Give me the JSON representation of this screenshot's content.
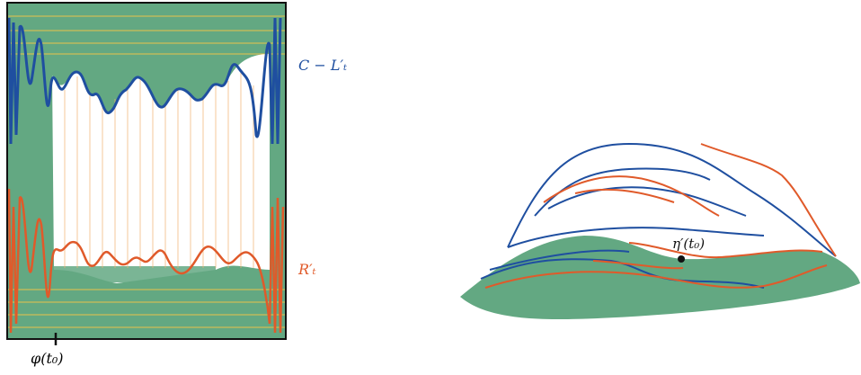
{
  "left_panel": {
    "blue_label": "C − L′ₜ",
    "orange_label": "R′ₜ",
    "axis_label": "φ(t₀)"
  },
  "right_panel": {
    "point_label": "η′(t₀)"
  }
}
